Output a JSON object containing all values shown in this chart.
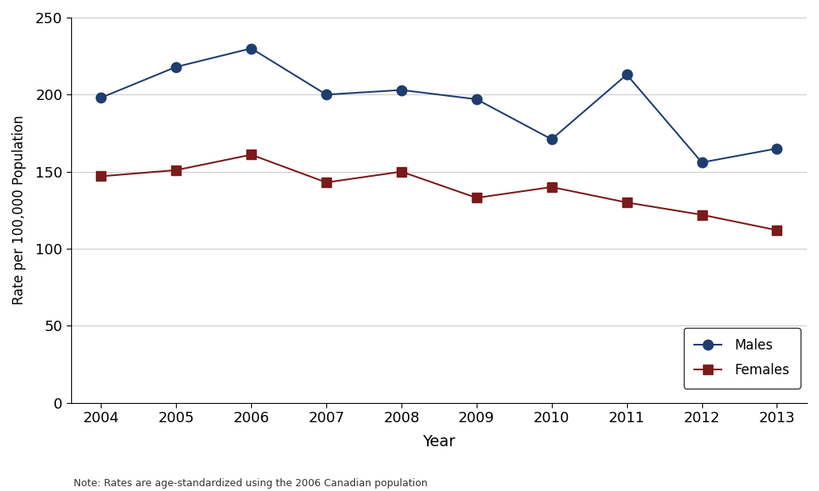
{
  "years": [
    2004,
    2005,
    2006,
    2007,
    2008,
    2009,
    2010,
    2011,
    2012,
    2013
  ],
  "males": [
    198,
    218,
    230,
    200,
    203,
    197,
    171,
    213,
    156,
    165
  ],
  "females": [
    147,
    151,
    161,
    143,
    150,
    133,
    140,
    130,
    122,
    112
  ],
  "male_color": "#1f3d6e",
  "female_color": "#7b1a1a",
  "male_label": "Males",
  "female_label": "Females",
  "xlabel": "Year",
  "ylabel": "Rate per 100,000 Population",
  "ylim": [
    0,
    250
  ],
  "yticks": [
    0,
    50,
    100,
    150,
    200,
    250
  ],
  "note": "Note: Rates are age-standardized using the 2006 Canadian population",
  "background_color": "#ffffff",
  "grid_color": "#cccccc"
}
